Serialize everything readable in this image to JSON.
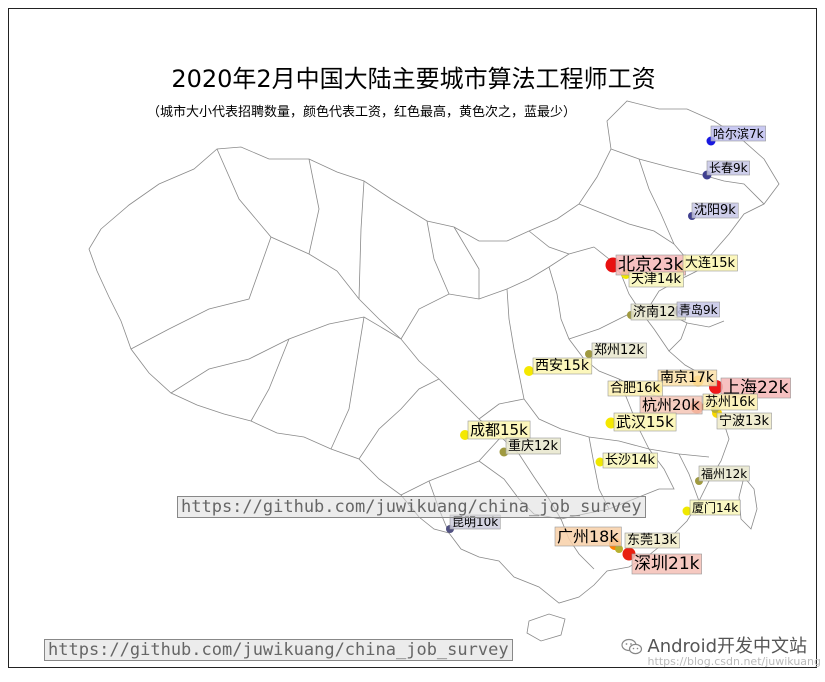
{
  "title": "2020年2月中国大陆主要城市算法工程师工资",
  "subtitle": "（城市大小代表招聘数量，颜色代表工资，红色最高，黄色次之，蓝最少）",
  "watermark_main": "https://github.com/juwikuang/china_job_survey",
  "watermark_bottom": "https://github.com/juwikuang/china_job_survey",
  "brand": "Android开发中文站",
  "brand_url": "https://blog.csdn.net/juwikuang",
  "colors": {
    "red": "#e01010",
    "orange": "#ff7a00",
    "yellow": "#f5e800",
    "olive": "#a09a40",
    "blue": "#1010d0",
    "navy": "#404080"
  },
  "cities": [
    {
      "label": "北京23k",
      "salary_k": 23,
      "color": "#e81010",
      "label_bg": "#f4b6b6"
    },
    {
      "label": "上海22k",
      "salary_k": 22,
      "color": "#f01818",
      "label_bg": "#f4b6b6"
    },
    {
      "label": "深圳21k",
      "salary_k": 21,
      "color": "#e82010",
      "label_bg": "#f4c0b6"
    },
    {
      "label": "杭州20k",
      "salary_k": 20,
      "color": "#f05010",
      "label_bg": "#f4c6b6"
    },
    {
      "label": "广州18k",
      "salary_k": 18,
      "color": "#ff8000",
      "label_bg": "#f8d0a8"
    },
    {
      "label": "南京17k",
      "salary_k": 17,
      "color": "#ffb000",
      "label_bg": "#fbe0a8"
    },
    {
      "label": "合肥16k",
      "salary_k": 16,
      "color": "#f8d800",
      "label_bg": "#fbf0b0"
    },
    {
      "label": "苏州16k",
      "salary_k": 16,
      "color": "#f8d800",
      "label_bg": "#fbf0b0"
    },
    {
      "label": "大连15k",
      "salary_k": 15,
      "color": "#f5e800",
      "label_bg": "#fbf6b0"
    },
    {
      "label": "西安15k",
      "salary_k": 15,
      "color": "#f5e800",
      "label_bg": "#fbf6b0"
    },
    {
      "label": "武汉15k",
      "salary_k": 15,
      "color": "#f5e800",
      "label_bg": "#fbf6b0"
    },
    {
      "label": "成都15k",
      "salary_k": 15,
      "color": "#f5e800",
      "label_bg": "#fbf6b0"
    },
    {
      "label": "天津14k",
      "salary_k": 14,
      "color": "#f0e800",
      "label_bg": "#f8f6b8"
    },
    {
      "label": "长沙14k",
      "salary_k": 14,
      "color": "#f0e800",
      "label_bg": "#f8f6b8"
    },
    {
      "label": "厦门14k",
      "salary_k": 14,
      "color": "#f0e800",
      "label_bg": "#f8f6b8"
    },
    {
      "label": "宁波13k",
      "salary_k": 13,
      "color": "#b8b030",
      "label_bg": "#eeeac8"
    },
    {
      "label": "东莞13k",
      "salary_k": 13,
      "color": "#b8b030",
      "label_bg": "#eeeac8"
    },
    {
      "label": "郑州12k",
      "salary_k": 12,
      "color": "#a09a40",
      "label_bg": "#e8e6cc"
    },
    {
      "label": "济南12k",
      "salary_k": 12,
      "color": "#a09a40",
      "label_bg": "#e8e6cc"
    },
    {
      "label": "重庆12k",
      "salary_k": 12,
      "color": "#a09a40",
      "label_bg": "#e8e6cc"
    },
    {
      "label": "福州12k",
      "salary_k": 12,
      "color": "#a09a40",
      "label_bg": "#e8e6cc"
    },
    {
      "label": "昆明10k",
      "salary_k": 10,
      "color": "#505080",
      "label_bg": "#ccccdc"
    },
    {
      "label": "沈阳9k",
      "salary_k": 9,
      "color": "#404090",
      "label_bg": "#c6c6e6"
    },
    {
      "label": "长春9k",
      "salary_k": 9,
      "color": "#404090",
      "label_bg": "#c6c6e6"
    },
    {
      "label": "青岛9k",
      "salary_k": 9,
      "color": "#404090",
      "label_bg": "#c6c6e6"
    },
    {
      "label": "哈尔滨7k",
      "salary_k": 7,
      "color": "#1818e0",
      "label_bg": "#c0c0f0"
    }
  ]
}
